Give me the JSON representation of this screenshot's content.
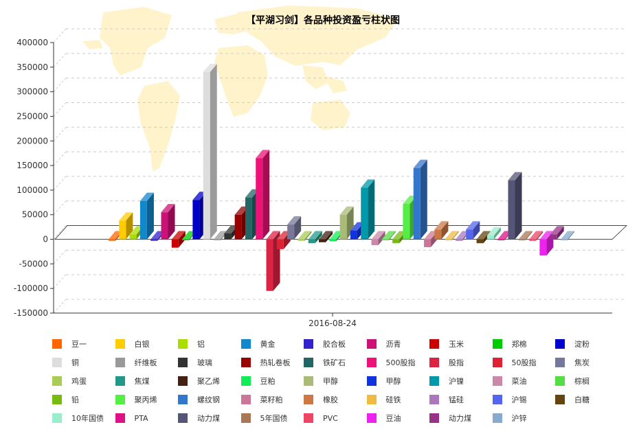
{
  "chart_data": {
    "type": "bar",
    "title": "【平湖习剑】各品种投资盈亏柱状图",
    "categories": [
      "2016-08-24"
    ],
    "xlabel": "",
    "ylabel": "",
    "ylim": [
      -150000,
      400000
    ],
    "yticks": [
      400000,
      350000,
      300000,
      250000,
      200000,
      150000,
      100000,
      50000,
      0,
      -50000,
      -100000,
      -150000
    ],
    "ytick_labels": [
      "400000",
      "350000",
      "300000",
      "250000",
      "200000",
      "150000",
      "100000",
      "50000",
      "0",
      "-50000",
      "-100000",
      "-150000"
    ],
    "grid": true,
    "legend_position": "bottom",
    "style": "3d-column",
    "background_image": "world-map",
    "series": [
      {
        "name": "豆一",
        "color": "#FF6600",
        "values": [
          -3000
        ]
      },
      {
        "name": "白银",
        "color": "#FFCC00",
        "values": [
          38000
        ]
      },
      {
        "name": "铝",
        "color": "#AADD00",
        "values": [
          10000
        ]
      },
      {
        "name": "黄金",
        "color": "#1188CC",
        "values": [
          78000
        ]
      },
      {
        "name": "胶合板",
        "color": "#3322CC",
        "values": [
          -3000
        ]
      },
      {
        "name": "沥青",
        "color": "#CC1177",
        "values": [
          55000
        ]
      },
      {
        "name": "玉米",
        "color": "#CC0000",
        "values": [
          -17000
        ]
      },
      {
        "name": "郑棉",
        "color": "#00CC00",
        "values": [
          -2000
        ]
      },
      {
        "name": "淀粉",
        "color": "#0000CC",
        "values": [
          80000
        ]
      },
      {
        "name": "铜",
        "color": "#DDDDDD",
        "values": [
          340000
        ]
      },
      {
        "name": "纤维板",
        "color": "#999999",
        "values": [
          -2000
        ]
      },
      {
        "name": "玻璃",
        "color": "#333333",
        "values": [
          12000
        ]
      },
      {
        "name": "热轧卷板",
        "color": "#990000",
        "values": [
          50000
        ]
      },
      {
        "name": "铁矿石",
        "color": "#226666",
        "values": [
          85000
        ]
      },
      {
        "name": "500股指",
        "color": "#EE1177",
        "values": [
          165000
        ]
      },
      {
        "name": "股指",
        "color": "#DD2244",
        "values": [
          -105000
        ]
      },
      {
        "name": "50股指",
        "color": "#DD2233",
        "values": [
          -20000
        ]
      },
      {
        "name": "焦炭",
        "color": "#777799",
        "values": [
          30000
        ]
      },
      {
        "name": "鸡蛋",
        "color": "#AACC55",
        "values": [
          -3000
        ]
      },
      {
        "name": "焦煤",
        "color": "#229988",
        "values": [
          -8000
        ]
      },
      {
        "name": "聚乙烯",
        "color": "#442211",
        "values": [
          -6000
        ]
      },
      {
        "name": "豆粕",
        "color": "#11EE55",
        "values": [
          -4000
        ]
      },
      {
        "name": "甲醇",
        "color": "#AABB77",
        "values": [
          50000
        ]
      },
      {
        "name": "甲醇",
        "color": "#1133DD",
        "values": [
          18000
        ]
      },
      {
        "name": "沪镍",
        "color": "#0099AA",
        "values": [
          105000
        ]
      },
      {
        "name": "菜油",
        "color": "#CC88AA",
        "values": [
          -12000
        ]
      },
      {
        "name": "棕榈",
        "color": "#55DD44",
        "values": [
          -2000
        ]
      },
      {
        "name": "铅",
        "color": "#77BB11",
        "values": [
          -8000
        ]
      },
      {
        "name": "聚丙烯",
        "color": "#55EE44",
        "values": [
          72000
        ]
      },
      {
        "name": "螺纹钢",
        "color": "#3377CC",
        "values": [
          145000
        ]
      },
      {
        "name": "菜籽粕",
        "color": "#CC7799",
        "values": [
          -16000
        ]
      },
      {
        "name": "橡胶",
        "color": "#CC7744",
        "values": [
          20000
        ]
      },
      {
        "name": "硅铁",
        "color": "#EEBB44",
        "values": [
          -2000
        ]
      },
      {
        "name": "锰硅",
        "color": "#AA77BB",
        "values": [
          -3000
        ]
      },
      {
        "name": "沪锡",
        "color": "#5566EE",
        "values": [
          20000
        ]
      },
      {
        "name": "白糖",
        "color": "#664411",
        "values": [
          -8000
        ]
      },
      {
        "name": "10年国债",
        "color": "#99EECC",
        "values": [
          8000
        ]
      },
      {
        "name": "PTA",
        "color": "#DD1188",
        "values": [
          -2000
        ]
      },
      {
        "name": "动力煤",
        "color": "#555577",
        "values": [
          120000
        ]
      },
      {
        "name": "5年国债",
        "color": "#AA7755",
        "values": [
          -2000
        ]
      },
      {
        "name": "PVC",
        "color": "#EE4466",
        "values": [
          -3000
        ]
      },
      {
        "name": "豆油",
        "color": "#EE22EE",
        "values": [
          -33000
        ]
      },
      {
        "name": "动力煤",
        "color": "#993388",
        "values": [
          10000
        ]
      },
      {
        "name": "沪锌",
        "color": "#88AACC",
        "values": [
          -2000
        ]
      }
    ]
  }
}
